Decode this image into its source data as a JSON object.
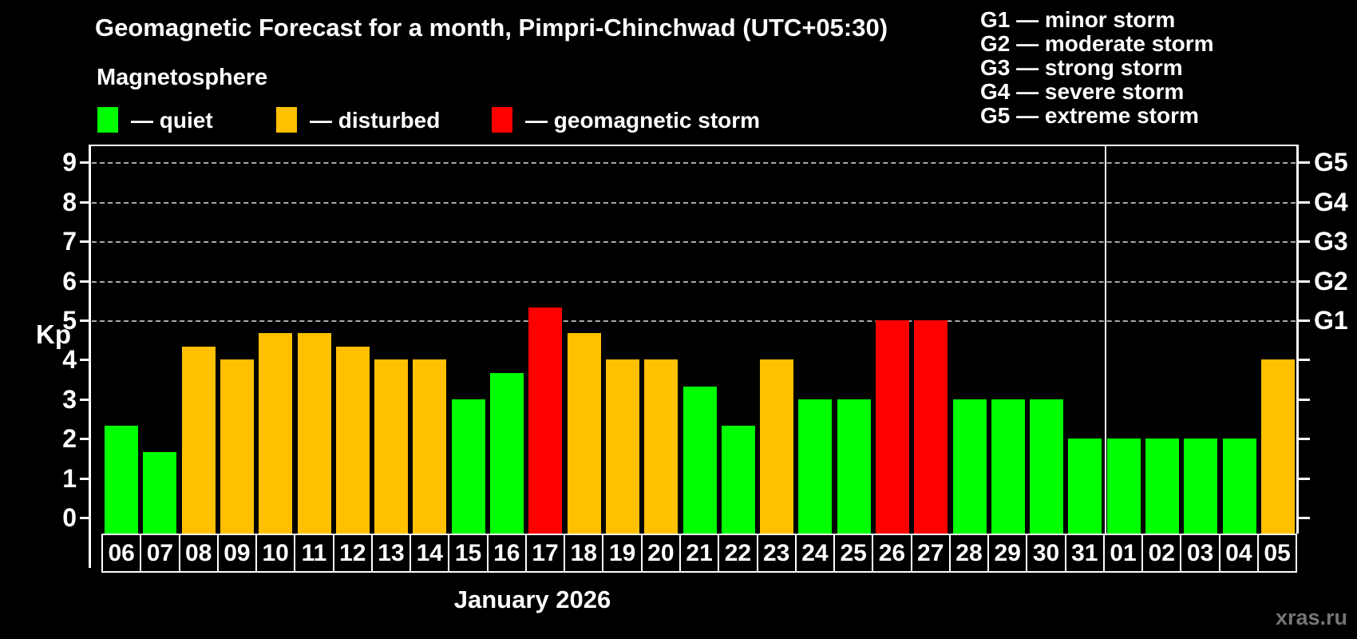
{
  "title": "Geomagnetic Forecast for a month, Pimpri-Chinchwad (UTC+05:30)",
  "subtitle": "Magnetosphere",
  "legend": {
    "items": [
      {
        "name": "quiet",
        "label": "— quiet",
        "color": "#00ff00"
      },
      {
        "name": "disturbed",
        "label": "— disturbed",
        "color": "#ffc000"
      },
      {
        "name": "storm",
        "label": "— geomagnetic storm",
        "color": "#ff0000"
      }
    ]
  },
  "g_scale_legend": [
    "G1 — minor storm",
    "G2 — moderate storm",
    "G3 — strong storm",
    "G4 — severe storm",
    "G5 — extreme storm"
  ],
  "watermark": "xras.ru",
  "chart_data": {
    "type": "bar",
    "title": "Geomagnetic Forecast for a month, Pimpri-Chinchwad (UTC+05:30)",
    "ylabel": "Kp",
    "xlabel": "January 2026",
    "ylim": [
      0,
      9
    ],
    "yticks": [
      0,
      1,
      2,
      3,
      4,
      5,
      6,
      7,
      8,
      9
    ],
    "grid": "dashed horizontal lines at Kp 5..9",
    "legend_position": "top-left",
    "g_levels": [
      {
        "kp": 5,
        "label": "G1"
      },
      {
        "kp": 6,
        "label": "G2"
      },
      {
        "kp": 7,
        "label": "G3"
      },
      {
        "kp": 8,
        "label": "G4"
      },
      {
        "kp": 9,
        "label": "G5"
      }
    ],
    "month_separator_after_index": 25,
    "categories": [
      "06",
      "07",
      "08",
      "09",
      "10",
      "11",
      "12",
      "13",
      "14",
      "15",
      "16",
      "17",
      "18",
      "19",
      "20",
      "21",
      "22",
      "23",
      "24",
      "25",
      "26",
      "27",
      "28",
      "29",
      "30",
      "31",
      "01",
      "02",
      "03",
      "04",
      "05"
    ],
    "values": [
      2.33,
      1.67,
      4.33,
      4,
      4.67,
      4.67,
      4.33,
      4,
      4,
      3,
      3.67,
      5.33,
      4.67,
      4,
      4,
      3.33,
      2.33,
      4,
      3,
      3,
      5,
      5,
      3,
      3,
      3,
      2,
      2,
      2,
      2,
      2,
      4
    ],
    "statuses": [
      "quiet",
      "quiet",
      "disturbed",
      "disturbed",
      "disturbed",
      "disturbed",
      "disturbed",
      "disturbed",
      "disturbed",
      "quiet",
      "quiet",
      "storm",
      "disturbed",
      "disturbed",
      "disturbed",
      "quiet",
      "quiet",
      "disturbed",
      "quiet",
      "quiet",
      "storm",
      "storm",
      "quiet",
      "quiet",
      "quiet",
      "quiet",
      "quiet",
      "quiet",
      "quiet",
      "quiet",
      "disturbed"
    ],
    "status_colors": {
      "quiet": "#00ff00",
      "disturbed": "#ffc000",
      "storm": "#ff0000"
    }
  }
}
